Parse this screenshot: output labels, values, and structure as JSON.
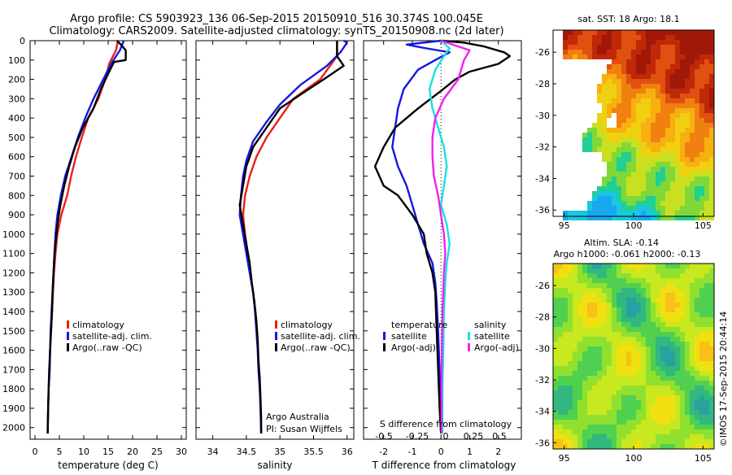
{
  "header": {
    "line1": "Argo profile: CS 5903923_136 06-Sep-2015 20150910_516 30.374S 100.045E",
    "line2": "Climatology: CARS2009. Satellite-adjusted climatology: synTS_20150908.nc (2d later)"
  },
  "credits": {
    "argo_australia": "Argo Australia",
    "pi": "PI: Susan Wijffels",
    "imos": "©IMOS 17-Sep-2015 20:44:14"
  },
  "colors": {
    "climatology": "#e8201a",
    "satellite": "#1616e0",
    "argo": "#000000",
    "sat_salinity": "#18e0e0",
    "argo_salinity": "#f020f0"
  },
  "depth_axis": {
    "ylim": [
      2060,
      0
    ],
    "ticks": [
      0,
      100,
      200,
      300,
      400,
      500,
      600,
      700,
      800,
      900,
      1000,
      1100,
      1200,
      1300,
      1400,
      1500,
      1600,
      1700,
      1800,
      1900,
      2000
    ]
  },
  "chart_data": [
    {
      "type": "line",
      "id": "temperature",
      "xlabel": "temperature (deg C)",
      "xlim": [
        -1,
        31
      ],
      "xticks": [
        0,
        5,
        10,
        15,
        20,
        25,
        30
      ],
      "legend": [
        "climatology",
        "satellite-adj. clim.",
        "Argo(..raw -QC)"
      ],
      "series": [
        {
          "name": "climatology",
          "color": "#e8201a",
          "points": [
            [
              17,
              0
            ],
            [
              16.6,
              50
            ],
            [
              15.2,
              120
            ],
            [
              14.4,
              200
            ],
            [
              13,
              300
            ],
            [
              10.9,
              400
            ],
            [
              9.6,
              500
            ],
            [
              8.4,
              600
            ],
            [
              7.4,
              700
            ],
            [
              6.6,
              800
            ],
            [
              5.4,
              900
            ],
            [
              4.6,
              1000
            ],
            [
              4.2,
              1100
            ],
            [
              3.9,
              1200
            ],
            [
              3.7,
              1300
            ],
            [
              3.5,
              1400
            ],
            [
              3.3,
              1500
            ],
            [
              3.1,
              1600
            ],
            [
              3,
              1700
            ],
            [
              2.8,
              1800
            ],
            [
              2.7,
              1900
            ],
            [
              2.6,
              2030
            ]
          ]
        },
        {
          "name": "satellite-adj. clim.",
          "color": "#1616e0",
          "points": [
            [
              18.2,
              0
            ],
            [
              17.4,
              50
            ],
            [
              15.6,
              120
            ],
            [
              14,
              200
            ],
            [
              12,
              300
            ],
            [
              10.3,
              400
            ],
            [
              8.8,
              500
            ],
            [
              7.5,
              600
            ],
            [
              6.2,
              700
            ],
            [
              5.3,
              800
            ],
            [
              4.6,
              900
            ],
            [
              4.2,
              1000
            ],
            [
              4,
              1100
            ],
            [
              3.8,
              1200
            ],
            [
              3.6,
              1300
            ],
            [
              3.4,
              1400
            ],
            [
              3.2,
              1500
            ],
            [
              3.1,
              1600
            ],
            [
              2.9,
              1700
            ],
            [
              2.8,
              1800
            ],
            [
              2.7,
              1900
            ],
            [
              2.6,
              2030
            ]
          ]
        },
        {
          "name": "Argo(..raw -QC)",
          "color": "#000000",
          "points": [
            [
              16.8,
              0
            ],
            [
              17.6,
              20
            ],
            [
              18.6,
              50
            ],
            [
              18.6,
              100
            ],
            [
              16.2,
              110
            ],
            [
              15.4,
              150
            ],
            [
              13.5,
              250
            ],
            [
              12,
              350
            ],
            [
              9.8,
              450
            ],
            [
              8.2,
              550
            ],
            [
              7,
              650
            ],
            [
              6,
              750
            ],
            [
              5.2,
              850
            ],
            [
              4.6,
              950
            ],
            [
              4.2,
              1050
            ],
            [
              4,
              1100
            ],
            [
              3.8,
              1200
            ],
            [
              3.6,
              1300
            ],
            [
              3.5,
              1400
            ],
            [
              3.3,
              1500
            ],
            [
              3.1,
              1600
            ],
            [
              3,
              1700
            ],
            [
              2.8,
              1800
            ],
            [
              2.7,
              1900
            ],
            [
              2.6,
              2030
            ]
          ]
        }
      ]
    },
    {
      "type": "line",
      "id": "salinity",
      "xlabel": "salinity",
      "xlim": [
        33.75,
        36.1
      ],
      "xticks": [
        34,
        34.5,
        35,
        35.5,
        36
      ],
      "legend": [
        "climatology",
        "satellite-adj. clim.",
        "Argo(..raw -QC)"
      ],
      "series": [
        {
          "name": "climatology",
          "color": "#e8201a",
          "points": [
            [
              35.85,
              0
            ],
            [
              35.85,
              80
            ],
            [
              35.6,
              200
            ],
            [
              35.2,
              300
            ],
            [
              35,
              400
            ],
            [
              34.8,
              500
            ],
            [
              34.65,
              600
            ],
            [
              34.55,
              700
            ],
            [
              34.48,
              800
            ],
            [
              34.45,
              900
            ],
            [
              34.48,
              1000
            ],
            [
              34.52,
              1100
            ],
            [
              34.56,
              1200
            ],
            [
              34.6,
              1300
            ],
            [
              34.63,
              1400
            ],
            [
              34.65,
              1500
            ],
            [
              34.67,
              1600
            ],
            [
              34.68,
              1700
            ],
            [
              34.7,
              1800
            ],
            [
              34.71,
              1900
            ],
            [
              34.72,
              2030
            ]
          ]
        },
        {
          "name": "satellite-adj. clim.",
          "color": "#1616e0",
          "points": [
            [
              35.95,
              0
            ],
            [
              36,
              10
            ],
            [
              35.9,
              60
            ],
            [
              35.7,
              130
            ],
            [
              35.3,
              230
            ],
            [
              35,
              330
            ],
            [
              34.8,
              420
            ],
            [
              34.6,
              520
            ],
            [
              34.5,
              620
            ],
            [
              34.45,
              700
            ],
            [
              34.42,
              800
            ],
            [
              34.4,
              900
            ],
            [
              34.45,
              1000
            ],
            [
              34.5,
              1100
            ],
            [
              34.55,
              1200
            ],
            [
              34.6,
              1300
            ],
            [
              34.63,
              1400
            ],
            [
              34.65,
              1500
            ],
            [
              34.67,
              1600
            ],
            [
              34.68,
              1700
            ],
            [
              34.7,
              1800
            ],
            [
              34.71,
              1900
            ],
            [
              34.72,
              2030
            ]
          ]
        },
        {
          "name": "Argo(..raw -QC)",
          "color": "#000000",
          "points": [
            [
              35.85,
              0
            ],
            [
              35.85,
              80
            ],
            [
              35.95,
              130
            ],
            [
              35.65,
              200
            ],
            [
              35.3,
              280
            ],
            [
              35,
              350
            ],
            [
              34.8,
              450
            ],
            [
              34.6,
              550
            ],
            [
              34.5,
              650
            ],
            [
              34.45,
              750
            ],
            [
              34.4,
              850
            ],
            [
              34.45,
              950
            ],
            [
              34.5,
              1050
            ],
            [
              34.55,
              1150
            ],
            [
              34.58,
              1250
            ],
            [
              34.62,
              1350
            ],
            [
              34.65,
              1450
            ],
            [
              34.67,
              1550
            ],
            [
              34.68,
              1650
            ],
            [
              34.7,
              1750
            ],
            [
              34.71,
              1850
            ],
            [
              34.72,
              1950
            ],
            [
              34.72,
              2030
            ]
          ]
        }
      ]
    },
    {
      "type": "line",
      "id": "difference",
      "xlabel": "T difference from climatology",
      "top_label": "S difference from climatology",
      "xlim": [
        -2.7,
        2.8
      ],
      "xticks": [
        -2,
        -1,
        0,
        1,
        2
      ],
      "s_ticks": [
        "-0.5",
        "-0.25",
        "0",
        "0.25",
        "0.5"
      ],
      "legend_titles": [
        "temperature",
        "salinity"
      ],
      "legend": [
        "satellite",
        "Argo(-adj)",
        "satellite",
        "Argo(-adj)"
      ],
      "series": [
        {
          "name": "satellite",
          "color": "#1616e0",
          "points": [
            [
              0,
              0
            ],
            [
              -1.2,
              20
            ],
            [
              -0.5,
              40
            ],
            [
              0.3,
              60
            ],
            [
              -0.2,
              100
            ],
            [
              -0.8,
              150
            ],
            [
              -1.3,
              250
            ],
            [
              -1.5,
              350
            ],
            [
              -1.6,
              450
            ],
            [
              -1.7,
              550
            ],
            [
              -1.5,
              650
            ],
            [
              -1.2,
              750
            ],
            [
              -1,
              850
            ],
            [
              -0.8,
              950
            ],
            [
              -0.6,
              1050
            ],
            [
              -0.3,
              1150
            ],
            [
              -0.2,
              1250
            ],
            [
              -0.15,
              1350
            ],
            [
              -0.1,
              1500
            ],
            [
              -0.05,
              1700
            ],
            [
              0,
              1900
            ],
            [
              0,
              2030
            ]
          ]
        },
        {
          "name": "Argo(-adj)",
          "color": "#000000",
          "points": [
            [
              0,
              0
            ],
            [
              0.8,
              10
            ],
            [
              1.5,
              30
            ],
            [
              2.2,
              60
            ],
            [
              2.4,
              80
            ],
            [
              2,
              120
            ],
            [
              1,
              160
            ],
            [
              0.5,
              200
            ],
            [
              0,
              260
            ],
            [
              -0.8,
              350
            ],
            [
              -1.6,
              450
            ],
            [
              -2,
              550
            ],
            [
              -2.3,
              650
            ],
            [
              -2,
              750
            ],
            [
              -1.5,
              800
            ],
            [
              -1,
              900
            ],
            [
              -0.6,
              1000
            ],
            [
              -0.5,
              1100
            ],
            [
              -0.3,
              1200
            ],
            [
              -0.2,
              1300
            ],
            [
              -0.15,
              1500
            ],
            [
              -0.1,
              1700
            ],
            [
              -0.05,
              1900
            ],
            [
              0,
              2030
            ]
          ]
        },
        {
          "name": "satellite",
          "color": "#18e0e0",
          "points": [
            [
              0,
              0
            ],
            [
              0.3,
              40
            ],
            [
              0.1,
              80
            ],
            [
              -0.2,
              150
            ],
            [
              -0.4,
              250
            ],
            [
              -0.3,
              350
            ],
            [
              -0.1,
              450
            ],
            [
              0.1,
              550
            ],
            [
              0.2,
              650
            ],
            [
              0.1,
              750
            ],
            [
              0,
              850
            ],
            [
              0.2,
              950
            ],
            [
              0.3,
              1050
            ],
            [
              0.2,
              1150
            ],
            [
              0.15,
              1250
            ],
            [
              0.1,
              1400
            ],
            [
              0.08,
              1600
            ],
            [
              0.05,
              1800
            ],
            [
              0.05,
              2030
            ]
          ]
        },
        {
          "name": "Argo(-adj)",
          "color": "#f020f0",
          "points": [
            [
              0,
              0
            ],
            [
              1,
              50
            ],
            [
              0.8,
              100
            ],
            [
              0.6,
              200
            ],
            [
              0.1,
              300
            ],
            [
              -0.2,
              400
            ],
            [
              -0.3,
              500
            ],
            [
              -0.3,
              600
            ],
            [
              -0.25,
              700
            ],
            [
              -0.1,
              800
            ],
            [
              0,
              900
            ],
            [
              0.1,
              1000
            ],
            [
              0.15,
              1100
            ],
            [
              0.1,
              1200
            ],
            [
              0.05,
              1400
            ],
            [
              0.03,
              1600
            ],
            [
              0.02,
              1800
            ],
            [
              0.02,
              2030
            ]
          ]
        }
      ]
    },
    {
      "type": "heatmap",
      "id": "sst",
      "title": "sat. SST: 18 Argo: 18.1",
      "xlim": [
        94.2,
        105.8
      ],
      "ylim": [
        -36.4,
        -24.6
      ],
      "xticks": [
        95,
        100,
        105
      ],
      "yticks": [
        -26,
        -28,
        -30,
        -32,
        -34,
        -36
      ],
      "marker": [
        100.045,
        -30.374
      ]
    },
    {
      "type": "heatmap",
      "id": "sla",
      "title": "Altim. SLA: -0.14",
      "subtitle": "Argo h1000: -0.061 h2000: -0.13",
      "xlim": [
        94.2,
        105.8
      ],
      "ylim": [
        -36.4,
        -24.6
      ],
      "xticks": [
        95,
        100,
        105
      ],
      "yticks": [
        -26,
        -28,
        -30,
        -32,
        -34,
        -36
      ],
      "marker": [
        100.045,
        -30.374
      ]
    }
  ]
}
